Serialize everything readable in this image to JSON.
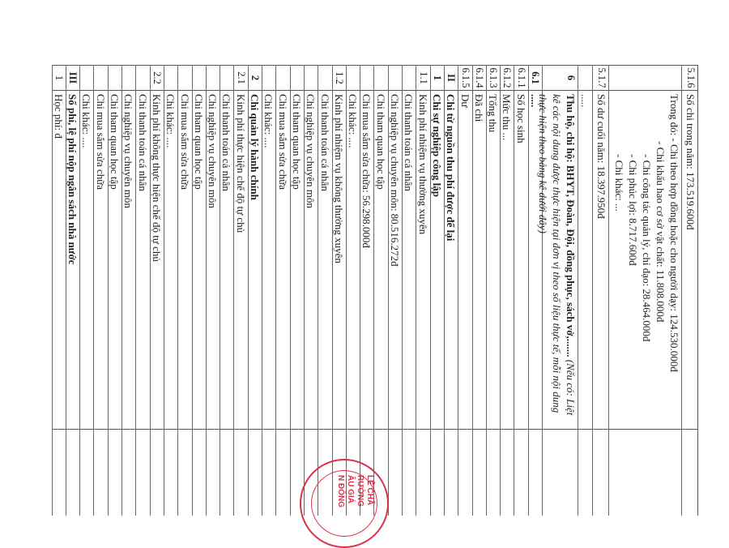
{
  "rows": [
    {
      "no": "5.1.6",
      "lines": [
        "Số chi trong năm: 173.519.600đ"
      ],
      "h": 20
    },
    {
      "no": "",
      "lines": [
        "Trong đó: - Chi theo hợp đồng hoặc cho người dạy: 124.530.000đ",
        "- Chi khấu hao cơ sở vật chất: 11.808.000đ",
        "- Chi công tác quản lý, chỉ đạo: 28.464.000đ",
        "- Chi phúc lợi: 8.717.600đ",
        "- Chi khác: ..."
      ],
      "h": 90,
      "indent": true
    },
    {
      "no": "5.1.7",
      "lines": [
        "Số dư cuối năm: 18.397.950đ"
      ],
      "h": 20
    },
    {
      "no": "",
      "lines": [
        "....."
      ],
      "h": 18
    },
    {
      "no": "6",
      "bold": true,
      "lines": [
        "Thu hộ, chi hộ: BHYT, Đoàn, Đội, đồng phục, sách vở,....... "
      ],
      "italic": "(Nếu có: Liệt kê các nội dung được thực hiện tại đơn vị theo số liệu thực tế, mỗi nội dung thực hiện theo bảng kê dưới đây)",
      "h": 44
    },
    {
      "no": "6.1",
      "bold": true,
      "lines": [
        "....."
      ]
    },
    {
      "no": "6.1.1",
      "lines": [
        "Số học sinh"
      ]
    },
    {
      "no": "6.1.2",
      "lines": [
        "Mức thu ..."
      ]
    },
    {
      "no": "6.1.3",
      "lines": [
        "Tổng thu"
      ]
    },
    {
      "no": "6.1.4",
      "lines": [
        "Đã chi"
      ]
    },
    {
      "no": "6.1.5",
      "lines": [
        "Dư"
      ]
    },
    {
      "no": "II",
      "bold": true,
      "lines": [
        "Chi từ nguồn thu phí được để lại"
      ]
    },
    {
      "no": "1",
      "bold": true,
      "lines": [
        "Chi sự nghiệp công lập"
      ]
    },
    {
      "no": "1.1",
      "lines": [
        "Kinh phí nhiệm vụ thường xuyên"
      ]
    },
    {
      "no": "",
      "lines": [
        "Chi thanh toán cá nhân"
      ]
    },
    {
      "no": "",
      "lines": [
        "Chi nghiệp vụ chuyên môn: 80.516.272đ"
      ]
    },
    {
      "no": "",
      "lines": [
        "Chi tham quan học tập"
      ]
    },
    {
      "no": "",
      "lines": [
        "Chi mua sắm sửa chữa: 56.298.000đ"
      ]
    },
    {
      "no": "",
      "lines": [
        "Chi khác: ...."
      ]
    },
    {
      "no": "1.2",
      "lines": [
        "Kinh phí nhiệm vụ không thường xuyên"
      ]
    },
    {
      "no": "",
      "lines": [
        "Chi thanh toán cá nhân"
      ]
    },
    {
      "no": "",
      "lines": [
        "Chi nghiệp vụ chuyên môn"
      ]
    },
    {
      "no": "",
      "lines": [
        "Chi tham quan học tập"
      ]
    },
    {
      "no": "",
      "lines": [
        "Chi mua sắm sửa chữa"
      ]
    },
    {
      "no": "",
      "lines": [
        "Chi khác: ...."
      ]
    },
    {
      "no": "2",
      "bold": true,
      "lines": [
        "Chi quản lý hành chính"
      ]
    },
    {
      "no": "2.1",
      "lines": [
        "Kinh phí thực hiện chế độ tự chủ"
      ]
    },
    {
      "no": "",
      "lines": [
        "Chi thanh toán cá nhân"
      ]
    },
    {
      "no": "",
      "lines": [
        "Chi nghiệp vụ chuyên môn"
      ]
    },
    {
      "no": "",
      "lines": [
        "Chi tham quan học tập"
      ]
    },
    {
      "no": "",
      "lines": [
        "Chi mua sắm sửa chữa"
      ]
    },
    {
      "no": "",
      "lines": [
        "Chi khác: ...."
      ]
    },
    {
      "no": "2.2",
      "lines": [
        "Kinh phí không thực hiện chế độ tự chủ"
      ]
    },
    {
      "no": "",
      "lines": [
        "Chi thanh toán cá nhân"
      ]
    },
    {
      "no": "",
      "lines": [
        "Chi nghiệp vụ chuyên môn"
      ]
    },
    {
      "no": "",
      "lines": [
        "Chi tham quan học tập"
      ]
    },
    {
      "no": "",
      "lines": [
        "Chi mua sắm sửa chữa"
      ]
    },
    {
      "no": "",
      "lines": [
        "Chi khác: ...."
      ]
    },
    {
      "no": "III",
      "bold": true,
      "lines": [
        "Số phí, lệ phí nộp ngân sách nhà nước"
      ]
    },
    {
      "no": "1",
      "lines": [
        "Học phí: đ"
      ]
    }
  ],
  "stamp": {
    "color": "#d8334a",
    "lettering": [
      "LÊ CHÂ",
      "RƯỜNG",
      "ÂU GIÁ",
      "N ĐÔNG"
    ]
  }
}
